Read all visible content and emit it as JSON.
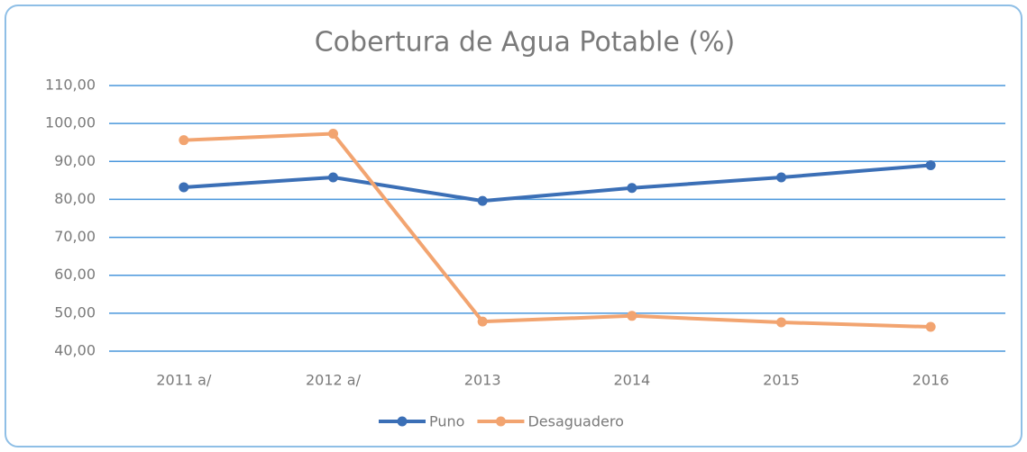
{
  "chart_data": {
    "type": "line",
    "title": "Cobertura de Agua Potable (%)",
    "categories": [
      "2011 a/",
      "2012 a/",
      "2013",
      "2014",
      "2015",
      "2016"
    ],
    "series": [
      {
        "name": "Puno",
        "color": "#3b6fb6",
        "values": [
          83.2,
          85.8,
          79.6,
          83.0,
          85.8,
          89.0
        ]
      },
      {
        "name": "Desaguadero",
        "color": "#f2a470",
        "values": [
          95.6,
          97.3,
          47.8,
          49.3,
          47.6,
          46.4
        ]
      }
    ],
    "ylim": [
      40,
      110
    ],
    "yticks": [
      {
        "value": 40,
        "label": "40,00"
      },
      {
        "value": 50,
        "label": "50,00"
      },
      {
        "value": 60,
        "label": "60,00"
      },
      {
        "value": 70,
        "label": "70,00"
      },
      {
        "value": 80,
        "label": "80,00"
      },
      {
        "value": 90,
        "label": "90,00"
      },
      {
        "value": 100,
        "label": "100,00"
      },
      {
        "value": 110,
        "label": "110,00"
      }
    ],
    "grid": true,
    "legend": "bottom"
  }
}
